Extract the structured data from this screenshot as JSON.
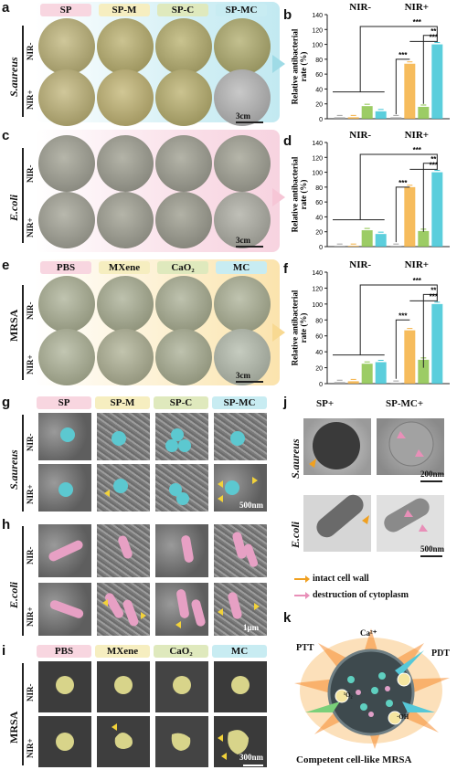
{
  "panels": {
    "a": "a",
    "b": "b",
    "c": "c",
    "d": "d",
    "e": "e",
    "f": "f",
    "g": "g",
    "h": "h",
    "i": "i",
    "j": "j",
    "k": "k"
  },
  "groups": {
    "sp": [
      "SP",
      "SP-M",
      "SP-C",
      "SP-MC"
    ],
    "mat": [
      "PBS",
      "MXene",
      "CaO₂",
      "MC"
    ]
  },
  "conditions": {
    "nir_minus": "NIR-",
    "nir_plus": "NIR+"
  },
  "organisms": {
    "sa": "S.aureus",
    "ec": "E.coli",
    "mrsa": "MRSA"
  },
  "scalebars": {
    "plate": "3cm",
    "sem_g": "500nm",
    "sem_h": "1μm",
    "sem_i": "300nm",
    "tem_top": "200nm",
    "tem_bottom": "500nm"
  },
  "panel_j": {
    "cols": [
      "SP+",
      "SP-MC+"
    ],
    "legend": [
      "intact cell wall",
      "destruction of cytoplasm"
    ]
  },
  "panel_k": {
    "labels": [
      "PTT",
      "Ca²⁺",
      "PDT",
      "¹O₂",
      "·OH"
    ],
    "caption": "Competent cell-like MRSA"
  },
  "colors": {
    "gray": "#a0a0a0",
    "orange": "#f5b041",
    "green": "#8bc34a",
    "cyan": "#3ec6d6",
    "arrow_orange": "#f0a020",
    "arrow_pink": "#e88fb8"
  },
  "chart_data": [
    {
      "type": "bar",
      "panel": "b",
      "ylabel": "Relative antibacterial rate (%)",
      "ylim": [
        0,
        140
      ],
      "yticks": [
        0,
        20,
        40,
        60,
        80,
        100,
        120,
        140
      ],
      "group_labels": [
        "NIR-",
        "NIR+"
      ],
      "series": [
        {
          "name": "SP",
          "values": [
            2,
            2
          ]
        },
        {
          "name": "SP-M",
          "values": [
            2,
            74
          ]
        },
        {
          "name": "SP-C",
          "values": [
            17,
            16
          ]
        },
        {
          "name": "SP-MC",
          "values": [
            10,
            100
          ]
        }
      ],
      "significance": [
        "***",
        "**",
        "***",
        "***"
      ]
    },
    {
      "type": "bar",
      "panel": "d",
      "ylabel": "Relative antibacterial rate (%)",
      "ylim": [
        0,
        140
      ],
      "yticks": [
        0,
        20,
        40,
        60,
        80,
        100,
        120,
        140
      ],
      "group_labels": [
        "NIR-",
        "NIR+"
      ],
      "series": [
        {
          "name": "SP",
          "values": [
            1,
            1
          ]
        },
        {
          "name": "SP-M",
          "values": [
            1,
            80
          ]
        },
        {
          "name": "SP-C",
          "values": [
            22,
            21
          ]
        },
        {
          "name": "SP-MC",
          "values": [
            17,
            100
          ]
        }
      ],
      "significance": [
        "***",
        "**",
        "***",
        "***"
      ]
    },
    {
      "type": "bar",
      "panel": "f",
      "ylabel": "Relative antibacterial rate (%)",
      "ylim": [
        0,
        140
      ],
      "yticks": [
        0,
        20,
        40,
        60,
        80,
        100,
        120,
        140
      ],
      "group_labels": [
        "NIR-",
        "NIR+"
      ],
      "series": [
        {
          "name": "SP",
          "values": [
            2,
            1
          ]
        },
        {
          "name": "SP-M",
          "values": [
            3,
            67
          ]
        },
        {
          "name": "SP-C",
          "values": [
            25,
            30
          ]
        },
        {
          "name": "SP-MC",
          "values": [
            27,
            100
          ]
        }
      ],
      "significance": [
        "***",
        "**",
        "***",
        "***"
      ]
    }
  ]
}
